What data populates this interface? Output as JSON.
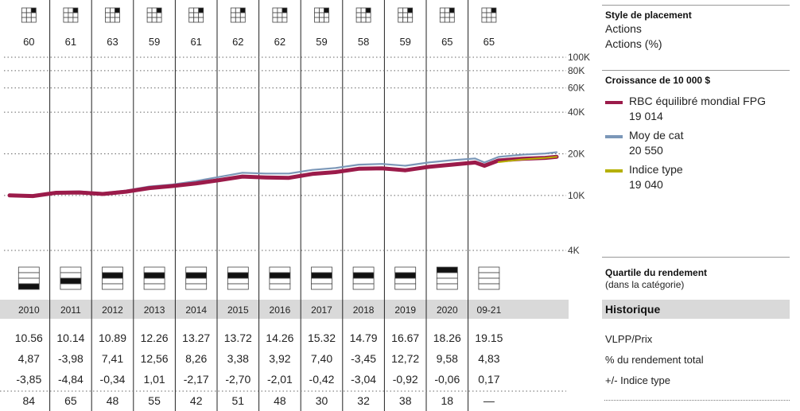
{
  "style_box": {
    "title": "Style de placement",
    "lines": [
      "Actions",
      "Actions (%)"
    ],
    "grid_highlight_column": "right",
    "grid_highlight_row": "top",
    "scores": [
      "60",
      "61",
      "63",
      "59",
      "61",
      "62",
      "62",
      "59",
      "58",
      "59",
      "65",
      "65"
    ]
  },
  "growth": {
    "title": "Croissance de 10 000  $",
    "legend": [
      {
        "name": "RBC équilibré mondial FPG",
        "value": "19 014",
        "color": "#9b1b4a"
      },
      {
        "name": "Moy de cat",
        "value": "20 550",
        "color": "#7b97b8"
      },
      {
        "name": "Indice type",
        "value": "19 040",
        "color": "#b5b000"
      }
    ]
  },
  "quartile": {
    "title": "Quartile du rendement",
    "subtitle": "(dans la catégorie)",
    "values": [
      4,
      3,
      2,
      2,
      2,
      2,
      2,
      2,
      2,
      2,
      1,
      0
    ]
  },
  "history": {
    "title": "Historique",
    "years": [
      "2010",
      "2011",
      "2012",
      "2013",
      "2014",
      "2015",
      "2016",
      "2017",
      "2018",
      "2019",
      "2020",
      "09-21"
    ],
    "rows": [
      {
        "label": "VLPP/Prix",
        "values": [
          "10.56",
          "10.14",
          "10.89",
          "12.26",
          "13.27",
          "13.72",
          "14.26",
          "15.32",
          "14.79",
          "16.67",
          "18.26",
          "19.15"
        ]
      },
      {
        "label": "% du rendement total",
        "values": [
          "4,87",
          "-3,98",
          "7,41",
          "12,56",
          "8,26",
          "3,38",
          "3,92",
          "7,40",
          "-3,45",
          "12,72",
          "9,58",
          "4,83"
        ]
      },
      {
        "label": "+/- Indice type",
        "values": [
          "-3,85",
          "-4,84",
          "-0,34",
          "1,01",
          "-2,17",
          "-2,70",
          "-2,01",
          "-0,42",
          "-3,04",
          "-0,92",
          "-0,06",
          "0,17"
        ]
      },
      {
        "label": "",
        "values": [
          "84",
          "65",
          "48",
          "55",
          "42",
          "51",
          "48",
          "30",
          "32",
          "38",
          "18",
          "—"
        ]
      }
    ]
  },
  "chart_data": {
    "type": "line",
    "y_scale": "log",
    "ylim": [
      4000,
      100000
    ],
    "y_ticks": [
      {
        "value": 100000,
        "label": "100K"
      },
      {
        "value": 80000,
        "label": "80K"
      },
      {
        "value": 60000,
        "label": "60K"
      },
      {
        "value": 40000,
        "label": "40K"
      },
      {
        "value": 20000,
        "label": "20K"
      },
      {
        "value": 10000,
        "label": "10K"
      },
      {
        "value": 4000,
        "label": "4K"
      }
    ],
    "x": [
      2010.0,
      2010.5,
      2011.0,
      2011.5,
      2012.0,
      2012.5,
      2013.0,
      2013.5,
      2014.0,
      2014.5,
      2015.0,
      2015.5,
      2016.0,
      2016.5,
      2017.0,
      2017.5,
      2018.0,
      2018.5,
      2019.0,
      2019.5,
      2020.0,
      2020.2,
      2020.5,
      2021.0,
      2021.5,
      2021.75
    ],
    "series": [
      {
        "name": "RBC équilibré mondial FPG",
        "color": "#9b1b4a",
        "values": [
          10000,
          9900,
          10450,
          10500,
          10250,
          10650,
          11300,
          11700,
          12200,
          12900,
          13700,
          13500,
          13400,
          14300,
          14750,
          15600,
          15700,
          15200,
          16100,
          16700,
          17300,
          16400,
          17900,
          18400,
          18700,
          19014
        ]
      },
      {
        "name": "Moy de cat",
        "color": "#7b97b8",
        "values": [
          10000,
          9950,
          10600,
          10700,
          10400,
          10850,
          11600,
          12000,
          12700,
          13600,
          14600,
          14400,
          14400,
          15300,
          15800,
          16700,
          16900,
          16400,
          17300,
          18000,
          18500,
          17300,
          19000,
          19700,
          20100,
          20550
        ]
      },
      {
        "name": "Indice type",
        "color": "#b5b000",
        "values": [
          null,
          null,
          null,
          null,
          null,
          null,
          null,
          null,
          null,
          null,
          null,
          null,
          null,
          null,
          null,
          null,
          null,
          null,
          null,
          null,
          null,
          null,
          17400,
          18200,
          18700,
          19040
        ]
      }
    ]
  }
}
